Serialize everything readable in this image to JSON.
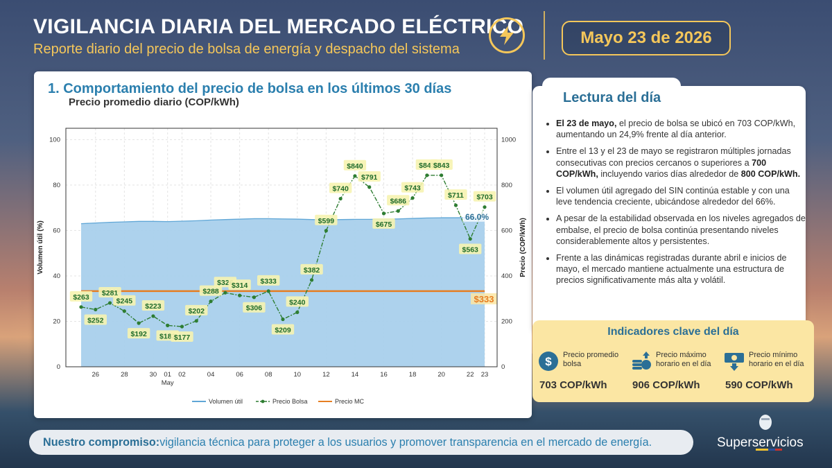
{
  "header": {
    "title": "VIGILANCIA DIARIA DEL MERCADO ELÉCTRICO",
    "subtitle": "Reporte diario del precio de bolsa de energía y despacho del sistema",
    "date": "Mayo 23 de 2026"
  },
  "chart_panel": {
    "title": "1. Comportamiento del precio de bolsa en los últimos 30 días",
    "subtitle": "Precio promedio diario (COP/kWh)"
  },
  "chart_data": {
    "type": "line",
    "x": [
      "Apr 25",
      "Apr 26",
      "Apr 27",
      "Apr 28",
      "Apr 29",
      "Apr 30",
      "May 01",
      "May 02",
      "May 03",
      "May 04",
      "May 05",
      "May 06",
      "May 07",
      "May 08",
      "May 09",
      "May 10",
      "May 11",
      "May 12",
      "May 13",
      "May 14",
      "May 15",
      "May 16",
      "May 17",
      "May 18",
      "May 19",
      "May 20",
      "May 21",
      "May 22",
      "May 23"
    ],
    "xtick_labels": [
      "26",
      "28",
      "30",
      "01",
      "02",
      "04",
      "06",
      "08",
      "10",
      "12",
      "14",
      "16",
      "18",
      "20",
      "22",
      "23"
    ],
    "xtick_index": [
      1,
      3,
      5,
      6,
      7,
      9,
      11,
      13,
      15,
      17,
      19,
      21,
      23,
      25,
      27,
      28
    ],
    "x_month_label": "May",
    "ylabel_left": "Volumen útil (%)",
    "ylabel_right": "Precio (COP/kWh)",
    "ylim_left": [
      0,
      105
    ],
    "ylim_right": [
      0,
      1050
    ],
    "yticks_left": [
      "0",
      "20",
      "40",
      "60",
      "80",
      "100"
    ],
    "yticks_right": [
      "0",
      "200",
      "400",
      "600",
      "800",
      "1000"
    ],
    "series": [
      {
        "name": "Volumen útil",
        "axis": "left",
        "kind": "area",
        "color": "#5fa6d6",
        "values": [
          63.0,
          63.3,
          63.6,
          63.8,
          64.0,
          64.0,
          63.9,
          64.1,
          64.3,
          64.6,
          64.8,
          65.0,
          65.2,
          65.2,
          65.1,
          65.0,
          64.8,
          64.7,
          64.8,
          64.9,
          64.9,
          65.0,
          65.1,
          65.3,
          65.5,
          65.6,
          65.6,
          65.7,
          66.0
        ]
      },
      {
        "name": "Precio Bolsa",
        "axis": "right",
        "kind": "line",
        "color": "#2e7d32",
        "values": [
          263,
          252,
          281,
          245,
          192,
          223,
          182,
          177,
          202,
          288,
          326,
          314,
          306,
          333,
          209,
          240,
          382,
          599,
          740,
          840,
          791,
          675,
          686,
          743,
          843,
          843,
          711,
          563,
          703
        ],
        "labels": [
          "$263",
          "$252",
          "$281",
          "$245",
          "$192",
          "$223",
          "$182",
          "$177",
          "$202",
          "$288",
          "$326",
          "$314",
          "$306",
          "$333",
          "$209",
          "$240",
          "$382",
          "$599",
          "$740",
          "$840",
          "$791",
          "$675",
          "$686",
          "$743",
          "$843",
          "$843",
          "$711",
          "$563",
          "$703"
        ],
        "label_below": [
          false,
          true,
          false,
          false,
          true,
          false,
          true,
          true,
          false,
          false,
          false,
          false,
          true,
          false,
          true,
          false,
          false,
          false,
          false,
          false,
          false,
          true,
          false,
          false,
          false,
          false,
          false,
          true,
          false
        ]
      },
      {
        "name": "Precio MC",
        "axis": "right",
        "kind": "hline",
        "color": "#e67e22",
        "value": 333
      }
    ],
    "end_labels": {
      "volume": "66.0%",
      "mc": "$333"
    },
    "legend": [
      "Volumen útil",
      "Precio Bolsa",
      "Precio MC"
    ],
    "legend_position": "bottom",
    "grid": true
  },
  "lectura": {
    "title": "Lectura del día",
    "bullets": [
      {
        "bold": "El 23 de mayo,",
        "text": " el precio de bolsa se ubicó en 703 COP/kWh, aumentando un 24,9% frente al día anterior."
      },
      {
        "pre": "Entre el 13 y el 23 de mayo se registraron múltiples jornadas consecutivas con precios cercanos o superiores a ",
        "bold": "700 COP/kWh,",
        "mid": " incluyendo varios días alrededor de ",
        "bold2": "800 COP/kWh."
      },
      {
        "text": "El volumen útil agregado del SIN continúa estable y con una leve tendencia creciente, ubicándose alrededor del 66%."
      },
      {
        "text": "A pesar de la estabilidad observada en los niveles agregados de embalse, el precio de bolsa continúa presentando niveles considerablemente altos y persistentes."
      },
      {
        "text": "Frente a las dinámicas registradas durante abril e inicios de mayo, el mercado mantiene actualmente una estructura de precios significativamente más alta y volátil."
      }
    ]
  },
  "kpis": {
    "title": "Indicadores clave del día",
    "items": [
      {
        "label": "Precio promedio bolsa",
        "value": "703 COP/kWh",
        "icon": "dollar-coin-icon"
      },
      {
        "label": "Precio máximo horario en el día",
        "value": "906 COP/kWh",
        "icon": "coins-up-icon"
      },
      {
        "label": "Precio mínimo horario en el día",
        "value": "590 COP/kWh",
        "icon": "bill-down-icon"
      }
    ]
  },
  "footer": {
    "bold": "Nuestro compromiso:",
    "text": " vigilancia técnica para proteger a los usuarios y promover transparencia en el mercado de energía."
  },
  "logo": {
    "text": "Superservicios"
  },
  "colors": {
    "accent": "#f5c75a",
    "title_blue": "#2b7fae",
    "kpi_bg": "#fbe6a3"
  }
}
